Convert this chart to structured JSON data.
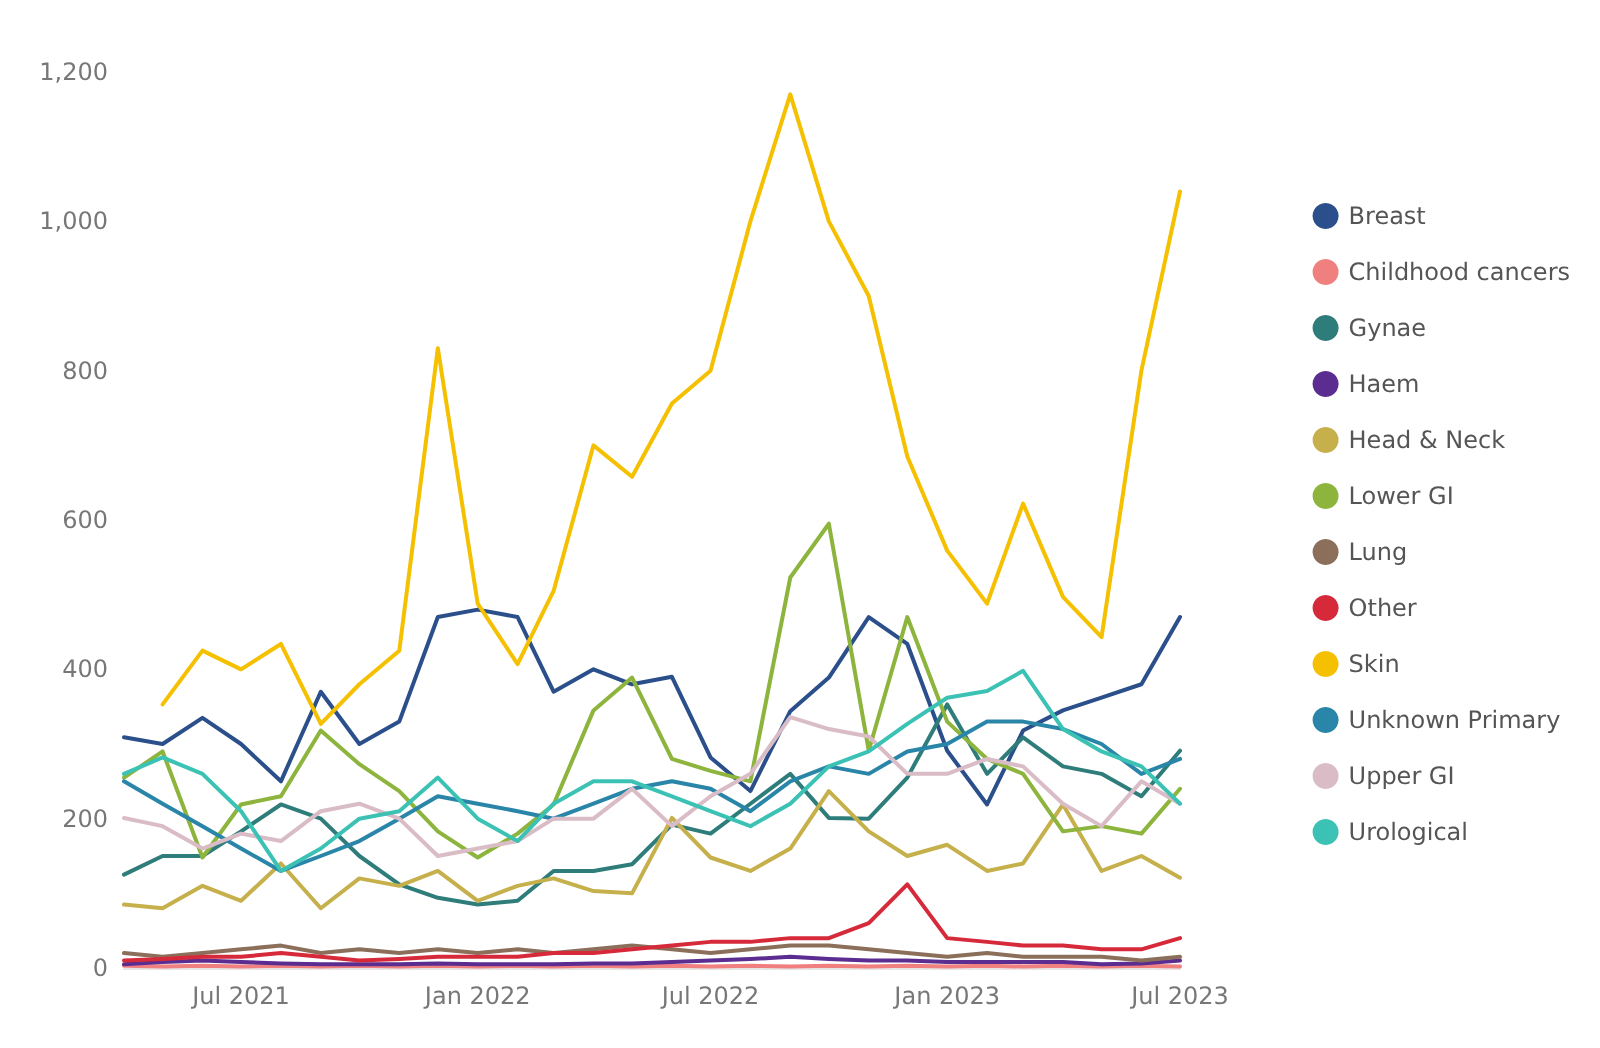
{
  "chart_data": {
    "type": "line",
    "x": [
      "2021-04-01",
      "2021-05-01",
      "2021-06-01",
      "2021-07-01",
      "2021-08-01",
      "2021-09-01",
      "2021-10-01",
      "2021-11-01",
      "2021-12-01",
      "2022-01-01",
      "2022-02-01",
      "2022-03-01",
      "2022-04-01",
      "2022-05-01",
      "2022-06-01",
      "2022-07-01",
      "2022-08-01",
      "2022-09-01",
      "2022-10-01",
      "2022-11-01",
      "2022-12-01",
      "2023-01-01",
      "2023-02-01",
      "2023-03-01",
      "2023-04-01",
      "2023-05-01",
      "2023-06-01",
      "2023-07-01"
    ],
    "series": [
      {
        "name": "Breast",
        "color": "#2b4f8a",
        "values": [
          309,
          300,
          335,
          300,
          250,
          370,
          300,
          330,
          470,
          480,
          470,
          370,
          400,
          380,
          390,
          282,
          237,
          344,
          389,
          470,
          434,
          291,
          219,
          318,
          345,
          362,
          380,
          470
        ]
      },
      {
        "name": "Childhood cancers",
        "color": "#f08080",
        "values": [
          3,
          2,
          3,
          2,
          3,
          2,
          3,
          2,
          3,
          2,
          3,
          2,
          3,
          2,
          3,
          2,
          3,
          2,
          3,
          2,
          3,
          2,
          3,
          2,
          3,
          2,
          3,
          2
        ]
      },
      {
        "name": "Gynae",
        "color": "#2e7d7a",
        "values": [
          125,
          150,
          150,
          183,
          219,
          200,
          150,
          112,
          94,
          85,
          90,
          130,
          130,
          139,
          192,
          180,
          220,
          260,
          201,
          200,
          255,
          353,
          260,
          309,
          270,
          260,
          230,
          291
        ]
      },
      {
        "name": "Haem",
        "color": "#5b2d90",
        "values": [
          5,
          8,
          10,
          8,
          6,
          5,
          5,
          5,
          6,
          5,
          5,
          5,
          6,
          6,
          8,
          10,
          12,
          15,
          12,
          10,
          10,
          8,
          8,
          8,
          8,
          5,
          6,
          10
        ]
      },
      {
        "name": "Head & Neck",
        "color": "#c6b04b",
        "values": [
          85,
          80,
          110,
          90,
          140,
          80,
          120,
          110,
          130,
          90,
          110,
          120,
          103,
          100,
          201,
          148,
          130,
          160,
          237,
          183,
          150,
          165,
          130,
          140,
          219,
          130,
          150,
          121
        ]
      },
      {
        "name": "Lower GI",
        "color": "#8db43c",
        "values": [
          255,
          290,
          148,
          219,
          230,
          318,
          273,
          237,
          183,
          148,
          180,
          219,
          345,
          389,
          280,
          264,
          250,
          523,
          595,
          291,
          470,
          330,
          280,
          260,
          183,
          190,
          180,
          240
        ]
      },
      {
        "name": "Lung",
        "color": "#8b6f5a",
        "values": [
          20,
          15,
          20,
          25,
          30,
          20,
          25,
          20,
          25,
          20,
          25,
          20,
          25,
          30,
          25,
          20,
          25,
          30,
          30,
          25,
          20,
          15,
          20,
          15,
          15,
          15,
          10,
          15
        ]
      },
      {
        "name": "Other",
        "color": "#d62a3a",
        "values": [
          10,
          12,
          15,
          15,
          20,
          15,
          10,
          12,
          15,
          15,
          15,
          20,
          20,
          25,
          30,
          35,
          35,
          40,
          40,
          60,
          112,
          40,
          35,
          30,
          30,
          25,
          25,
          40
        ]
      },
      {
        "name": "Skin",
        "color": "#f5c000",
        "values": [
          null,
          353,
          425,
          400,
          434,
          327,
          380,
          425,
          830,
          488,
          407,
          505,
          700,
          658,
          756,
          800,
          1000,
          1170,
          1000,
          900,
          685,
          559,
          488,
          622,
          497,
          443,
          800,
          1040
        ]
      },
      {
        "name": "Unknown Primary",
        "color": "#2a86a8",
        "values": [
          250,
          220,
          190,
          160,
          130,
          150,
          170,
          200,
          230,
          220,
          210,
          200,
          220,
          240,
          250,
          240,
          210,
          250,
          270,
          260,
          290,
          300,
          330,
          330,
          320,
          300,
          260,
          280
        ]
      },
      {
        "name": "Upper GI",
        "color": "#d9bcc6",
        "values": [
          201,
          190,
          160,
          180,
          170,
          210,
          220,
          200,
          150,
          160,
          170,
          200,
          200,
          240,
          190,
          230,
          260,
          336,
          320,
          310,
          260,
          260,
          280,
          270,
          220,
          190,
          250,
          220
        ]
      },
      {
        "name": "Urological",
        "color": "#3cc2b4",
        "values": [
          260,
          282,
          260,
          210,
          130,
          160,
          200,
          210,
          255,
          200,
          170,
          220,
          250,
          250,
          230,
          210,
          190,
          220,
          270,
          290,
          327,
          362,
          371,
          398,
          320,
          290,
          270,
          220
        ]
      }
    ],
    "xticks": [
      {
        "value": "2021-07-01",
        "label": "Jul 2021"
      },
      {
        "value": "2022-01-01",
        "label": "Jan 2022"
      },
      {
        "value": "2022-07-01",
        "label": "Jul 2022"
      },
      {
        "value": "2023-01-01",
        "label": "Jan 2023"
      },
      {
        "value": "2023-07-01",
        "label": "Jul 2023"
      }
    ],
    "xlim": [
      "2021-04-01",
      "2023-07-01"
    ],
    "ylim": [
      0,
      1200
    ],
    "yticks": [
      0,
      200,
      400,
      600,
      800,
      {
        "value": 1000,
        "label": "1,000"
      },
      {
        "value": 1200,
        "label": "1,200"
      }
    ],
    "grid": false,
    "legend": "right",
    "marker": "none",
    "line_style": "solid"
  }
}
